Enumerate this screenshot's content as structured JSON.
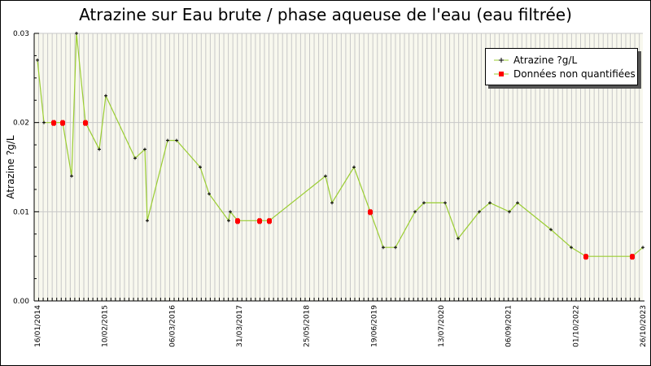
{
  "chart_data": {
    "type": "line",
    "title": "Atrazine sur Eau brute / phase aqueuse de l'eau (eau filtrée)",
    "xlabel": "",
    "ylabel": "Atrazine ?g/L",
    "ylim": [
      0,
      0.03
    ],
    "y_ticks": [
      "0.00",
      "0.01",
      "0.02",
      "0.03"
    ],
    "x_tick_labels": [
      "16/01/2014",
      "10/02/2015",
      "06/03/2016",
      "31/03/2017",
      "25/05/2018",
      "19/06/2019",
      "13/07/2020",
      "06/09/2021",
      "01/10/2022",
      "26/10/2023"
    ],
    "grid": true,
    "legend_position": "top-right",
    "series": [
      {
        "name": "Atrazine ?g/L",
        "color": "#9acd32",
        "marker_color": "#000000",
        "points": [
          {
            "x": 46,
            "v": 0.027,
            "q": true
          },
          {
            "x": 54,
            "v": 0.02,
            "q": true
          },
          {
            "x": 66,
            "v": 0.02,
            "q": false
          },
          {
            "x": 77,
            "v": 0.02,
            "q": false
          },
          {
            "x": 88,
            "v": 0.014,
            "q": true
          },
          {
            "x": 94,
            "v": 0.03,
            "q": true
          },
          {
            "x": 105,
            "v": 0.02,
            "q": false
          },
          {
            "x": 122,
            "v": 0.017,
            "q": true
          },
          {
            "x": 130,
            "v": 0.023,
            "q": true
          },
          {
            "x": 166,
            "v": 0.016,
            "q": true
          },
          {
            "x": 178,
            "v": 0.017,
            "q": true
          },
          {
            "x": 181,
            "v": 0.009,
            "q": true
          },
          {
            "x": 206,
            "v": 0.018,
            "q": true
          },
          {
            "x": 217,
            "v": 0.018,
            "q": true
          },
          {
            "x": 246,
            "v": 0.015,
            "q": true
          },
          {
            "x": 257,
            "v": 0.012,
            "q": true
          },
          {
            "x": 281,
            "v": 0.009,
            "q": true
          },
          {
            "x": 283,
            "v": 0.01,
            "q": true
          },
          {
            "x": 292,
            "v": 0.009,
            "q": false
          },
          {
            "x": 319,
            "v": 0.009,
            "q": false
          },
          {
            "x": 331,
            "v": 0.009,
            "q": false
          },
          {
            "x": 400,
            "v": 0.014,
            "q": true
          },
          {
            "x": 408,
            "v": 0.011,
            "q": true
          },
          {
            "x": 435,
            "v": 0.015,
            "q": true
          },
          {
            "x": 455,
            "v": 0.01,
            "q": false
          },
          {
            "x": 471,
            "v": 0.006,
            "q": true
          },
          {
            "x": 486,
            "v": 0.006,
            "q": true
          },
          {
            "x": 510,
            "v": 0.01,
            "q": true
          },
          {
            "x": 521,
            "v": 0.011,
            "q": true
          },
          {
            "x": 547,
            "v": 0.011,
            "q": true
          },
          {
            "x": 563,
            "v": 0.007,
            "q": true
          },
          {
            "x": 589,
            "v": 0.01,
            "q": true
          },
          {
            "x": 602,
            "v": 0.011,
            "q": true
          },
          {
            "x": 626,
            "v": 0.01,
            "q": true
          },
          {
            "x": 636,
            "v": 0.011,
            "q": true
          },
          {
            "x": 677,
            "v": 0.008,
            "q": true
          },
          {
            "x": 702,
            "v": 0.006,
            "q": true
          },
          {
            "x": 720,
            "v": 0.005,
            "q": false
          },
          {
            "x": 777,
            "v": 0.005,
            "q": false
          },
          {
            "x": 790,
            "v": 0.006,
            "q": true
          }
        ]
      }
    ],
    "legend": [
      {
        "label": "Atrazine ?g/L",
        "marker_color": "#000000",
        "line_color": "#9acd32"
      },
      {
        "label": "Données non quantifiées",
        "marker_color": "#ff0000",
        "line_color": "#9acd32"
      }
    ]
  },
  "colors": {
    "plot_bg": "#f8f8ee",
    "grid": "#c8c8c8",
    "line": "#9acd32",
    "quantified": "#000000",
    "non_quantified": "#ff0000"
  }
}
